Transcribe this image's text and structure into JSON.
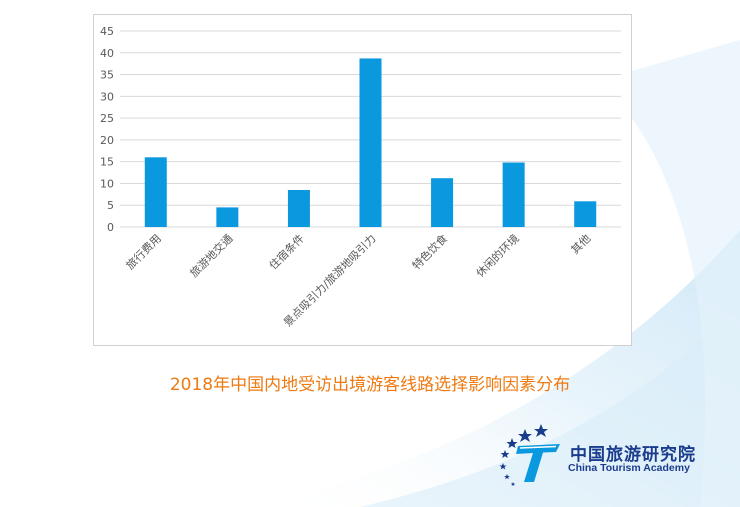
{
  "chart_data": {
    "type": "bar",
    "title": "2018年中国内地受访出境游客线路选择影响因素分布",
    "categories": [
      "旅行费用",
      "旅游地交通",
      "住宿条件",
      "景点吸引力/旅游地吸引力",
      "特色饮食",
      "休闲的环境",
      "其他"
    ],
    "values": [
      16,
      4.5,
      8.5,
      38.7,
      11.2,
      14.8,
      5.9
    ],
    "ylim": [
      0,
      45
    ],
    "yticks": [
      0,
      5,
      10,
      15,
      20,
      25,
      30,
      35,
      40,
      45
    ],
    "grid": true,
    "legend": "none",
    "bar_color": "#0a98de"
  },
  "logo": {
    "name_cn": "中国旅游研究院",
    "name_en": "China Tourism Academy",
    "colors": {
      "primary": "#1a3c8c",
      "accent": "#0a98de"
    }
  }
}
